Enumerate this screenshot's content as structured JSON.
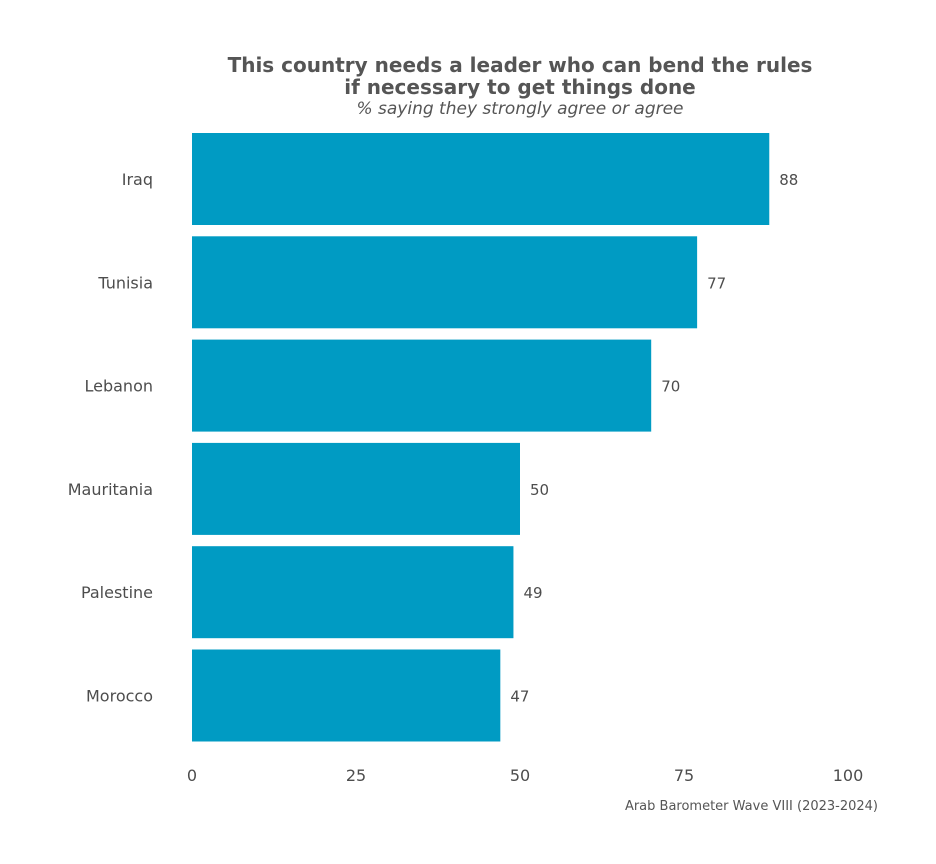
{
  "chart_data": {
    "type": "bar",
    "orientation": "horizontal",
    "title": "This country needs a leader who can bend the rules if necessary to get things done",
    "title_lines": [
      "This country needs a leader who can bend the rules",
      "if necessary to get things done"
    ],
    "subtitle": "% saying they strongly agree or agree",
    "categories": [
      "Iraq",
      "Tunisia",
      "Lebanon",
      "Mauritania",
      "Palestine",
      "Morocco"
    ],
    "values": [
      88,
      77,
      70,
      50,
      49,
      47
    ],
    "xlim": [
      0,
      100
    ],
    "xticks": [
      0,
      25,
      50,
      75,
      100
    ],
    "xlabel": "",
    "ylabel": "",
    "grid": false,
    "bar_color": "#009bc3",
    "source": "Arab Barometer Wave VIII (2023-2024)"
  }
}
